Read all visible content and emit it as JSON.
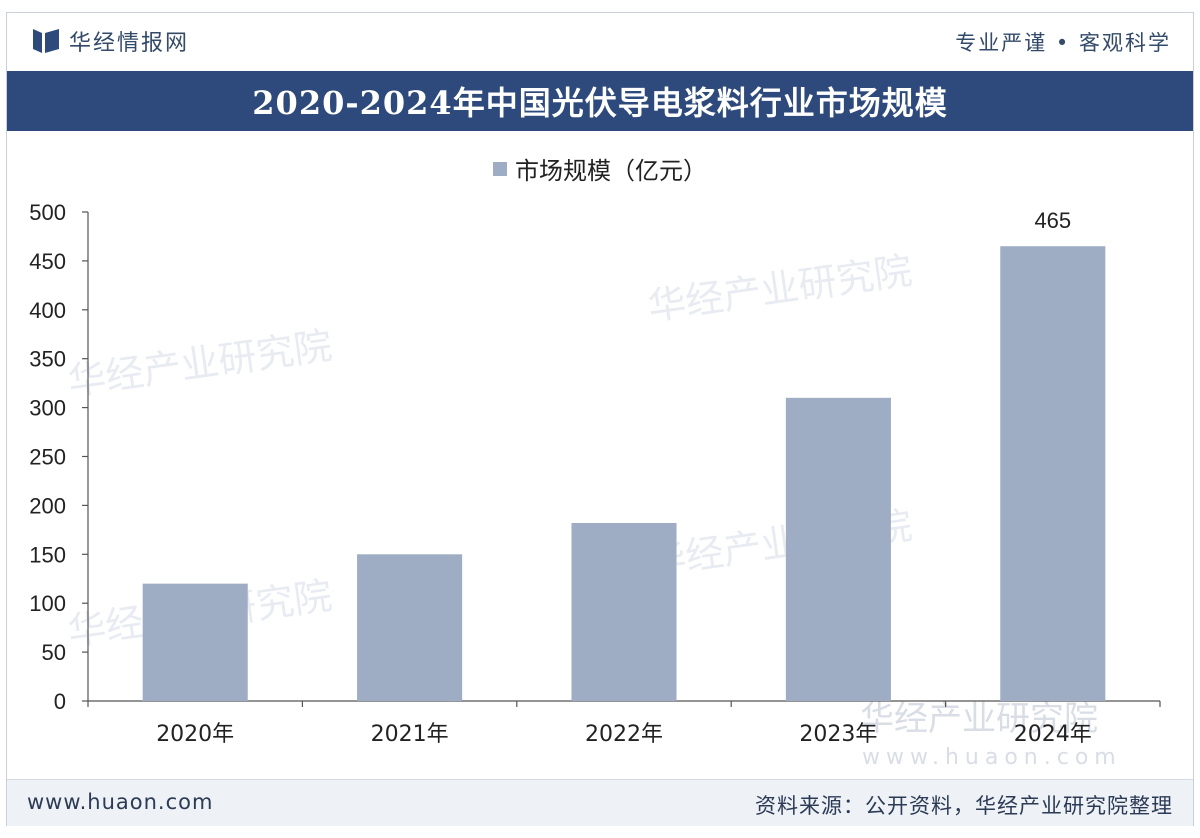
{
  "header": {
    "brand": "华经情报网",
    "slogan": "专业严谨 • 客观科学"
  },
  "watermark": {
    "brand_text": "华经产业研究院",
    "url_text": "www.huaon.com"
  },
  "chart_data": {
    "type": "bar",
    "title": "2020-2024年中国光伏导电浆料行业市场规模",
    "categories": [
      "2020年",
      "2021年",
      "2022年",
      "2023年",
      "2024年"
    ],
    "series": [
      {
        "name": "市场规模（亿元）",
        "values": [
          120,
          150,
          182,
          310,
          465
        ]
      }
    ],
    "data_labels": [
      null,
      null,
      null,
      null,
      "465"
    ],
    "ylim": [
      0,
      500
    ],
    "yticks": [
      0,
      50,
      100,
      150,
      200,
      250,
      300,
      350,
      400,
      450,
      500
    ],
    "grid": false,
    "legend": "top-center",
    "bar_color": "#9eacc4",
    "axis_color": "#555555"
  },
  "footer": {
    "site": "www.huaon.com",
    "source": "资料来源：公开资料，华经产业研究院整理"
  },
  "colors": {
    "title_bar": "#2e4a7c",
    "brand_text": "#334a6a",
    "footer_bg": "#eef1f5"
  }
}
